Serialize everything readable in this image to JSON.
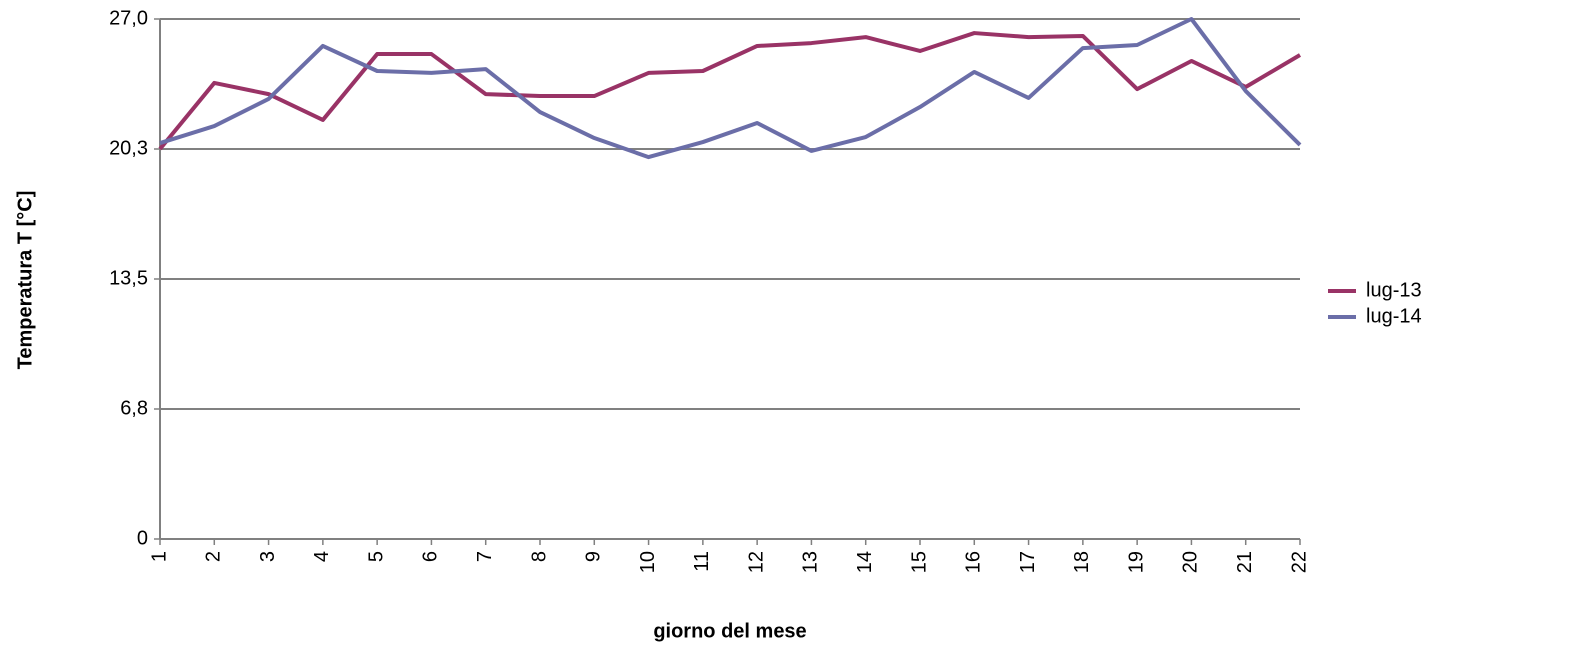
{
  "chart_data": {
    "type": "line",
    "x_label": "giorno del mese",
    "y_label": "Temperatura  T [°C]",
    "categories": [
      "1",
      "2",
      "3",
      "4",
      "5",
      "6",
      "7",
      "8",
      "9",
      "10",
      "11",
      "12",
      "13",
      "14",
      "15",
      "16",
      "17",
      "18",
      "19",
      "20",
      "21",
      "22"
    ],
    "series": [
      {
        "name": "lug-13",
        "color": "#993366",
        "values": [
          20.25,
          23.68,
          23.1,
          21.76,
          25.18,
          25.18,
          23.1,
          23.0,
          23.0,
          24.2,
          24.3,
          25.6,
          25.75,
          26.06,
          25.34,
          26.27,
          26.06,
          26.12,
          23.36,
          24.82,
          23.47,
          25.13
        ]
      },
      {
        "name": "lug-14",
        "color": "#6b6ea8",
        "values": [
          20.56,
          21.44,
          22.85,
          25.6,
          24.3,
          24.2,
          24.4,
          22.17,
          20.82,
          19.83,
          20.61,
          21.6,
          20.15,
          20.87,
          22.43,
          24.25,
          22.9,
          25.49,
          25.65,
          27.0,
          23.26,
          20.46
        ]
      }
    ],
    "ylim": [
      0,
      27
    ],
    "yticks": [
      0,
      {
        "value": 6.75,
        "label": "6,8"
      },
      {
        "value": 13.5,
        "label": "13,5"
      },
      {
        "value": 20.25,
        "label": "20,3"
      },
      {
        "value": 27,
        "label": "27,0"
      }
    ],
    "grid": true,
    "legend": "right"
  }
}
